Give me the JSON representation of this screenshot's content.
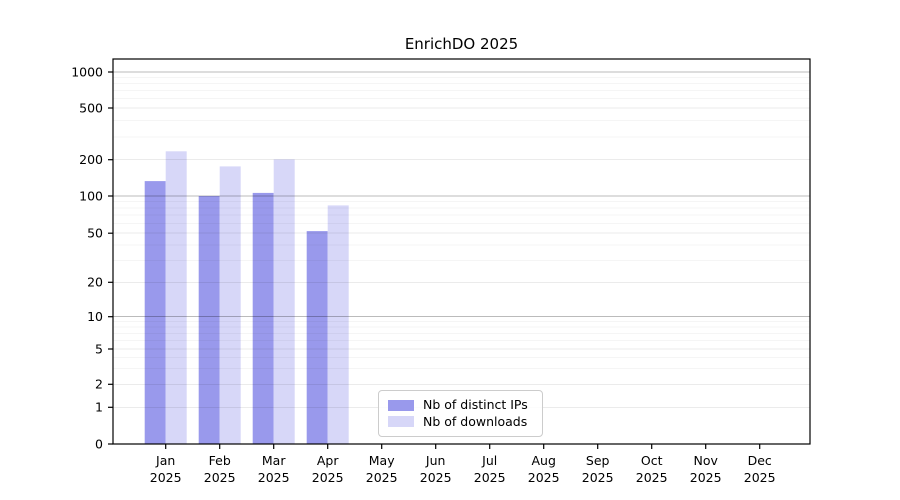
{
  "chart_data": {
    "type": "bar",
    "title": "EnrichDO 2025",
    "y_scale": "symlog",
    "grid": true,
    "legend_position": "lower center (inside plot)",
    "year": "2025",
    "months": [
      "Jan",
      "Feb",
      "Mar",
      "Apr",
      "May",
      "Jun",
      "Jul",
      "Aug",
      "Sep",
      "Oct",
      "Nov",
      "Dec"
    ],
    "series": [
      {
        "name": "Nb of distinct IPs",
        "color": "#9999ec",
        "values": [
          133,
          100,
          106,
          52,
          0,
          0,
          0,
          0,
          0,
          0,
          0,
          0
        ]
      },
      {
        "name": "Nb of downloads",
        "color": "#d7d7f8",
        "values": [
          232,
          176,
          201,
          84,
          0,
          0,
          0,
          0,
          0,
          0,
          0,
          0
        ]
      }
    ],
    "y_ticks": [
      0,
      1,
      2,
      5,
      10,
      20,
      50,
      100,
      200,
      500,
      1000
    ],
    "y_minor_ticks": [
      3,
      4,
      6,
      7,
      8,
      9,
      30,
      40,
      60,
      70,
      80,
      90,
      300,
      400,
      600,
      700,
      800,
      900
    ],
    "ylim_top_value": 1200,
    "colors": {
      "grid_decade": "#bbbbbb",
      "grid_major": "#ebebeb",
      "grid_minor": "#f5f5f5",
      "axis": "#000000",
      "tick_label": "#000000"
    }
  }
}
